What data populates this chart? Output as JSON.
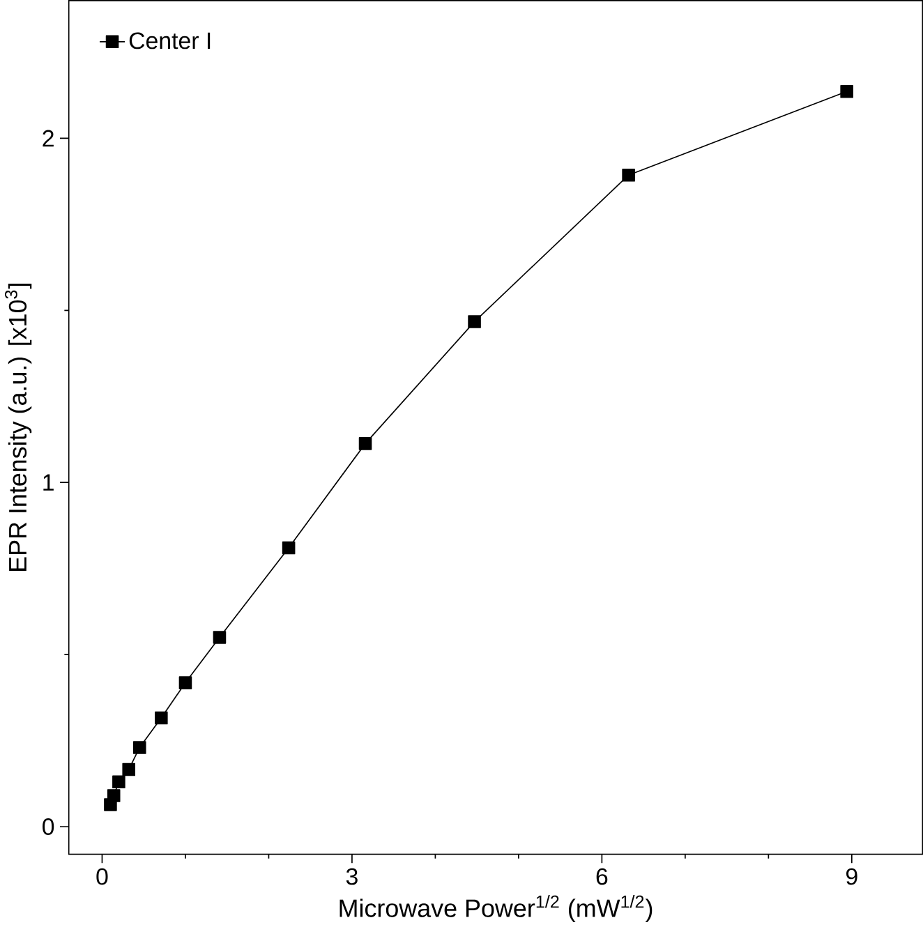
{
  "chart_data": {
    "type": "line",
    "xlabel": "Microwave Power$^{1/2}$ (mW$^{1/2}$)",
    "ylabel": "EPR Intensity (a.u.) [x10$^{3}$]",
    "xlim": [
      -0.4,
      9.85
    ],
    "ylim": [
      -0.08,
      2.4
    ],
    "xticks": [
      0,
      3,
      6,
      9
    ],
    "yticks": [
      0,
      1,
      2
    ],
    "series": [
      {
        "name": "Center I",
        "color": "#000000",
        "x": [
          0.1,
          0.14,
          0.2,
          0.32,
          0.45,
          0.71,
          1,
          1.41,
          2.24,
          3.16,
          4.47,
          6.32,
          8.94
        ],
        "values": [
          0.064,
          0.09,
          0.13,
          0.166,
          0.23,
          0.316,
          0.418,
          0.55,
          0.81,
          1.113,
          1.467,
          1.893,
          2.136
        ]
      }
    ],
    "marker": "square",
    "line_style": "solid",
    "grid": false,
    "legend": "top left"
  }
}
